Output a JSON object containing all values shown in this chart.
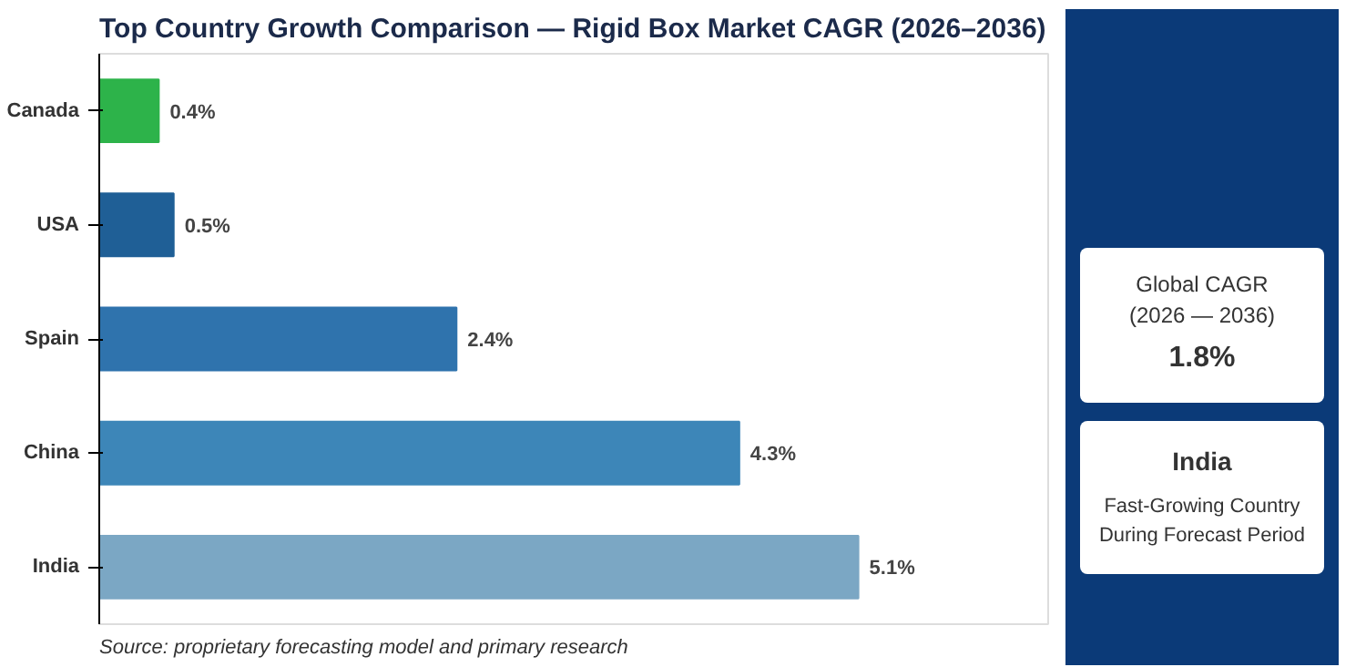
{
  "chart_data": {
    "type": "bar",
    "orientation": "horizontal",
    "title": "Top Country Growth Comparison — Rigid Box Market CAGR (2026–2036)",
    "categories": [
      "Canada",
      "USA",
      "Spain",
      "China",
      "India"
    ],
    "values": [
      0.4,
      0.5,
      2.4,
      4.3,
      5.1
    ],
    "value_labels": [
      "0.4%",
      "0.5%",
      "2.4%",
      "4.3%",
      "5.1%"
    ],
    "colors": [
      "#2db34a",
      "#1f5f96",
      "#2f73ad",
      "#3d86b8",
      "#7ba7c4"
    ],
    "grid": false,
    "annotations": [
      "Source: proprietary forecasting model and primary research",
      "Global CAGR",
      "(2026 — 2036)",
      "1.8%",
      "India",
      "Fast-Growing Country",
      "During Forecast Period"
    ]
  }
}
